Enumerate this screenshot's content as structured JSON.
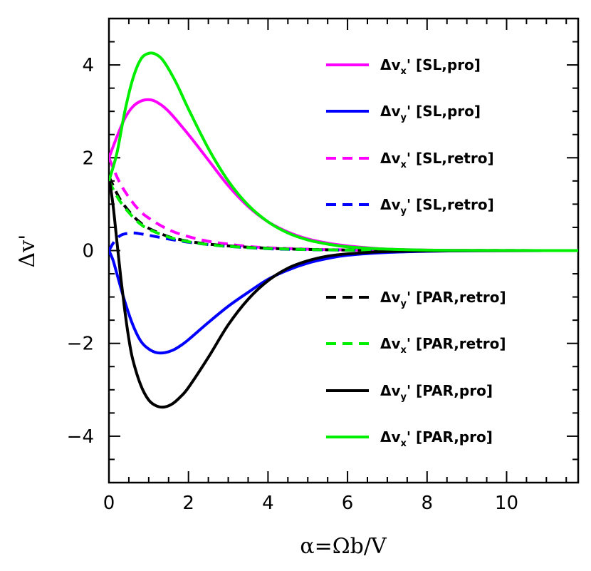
{
  "chart_data": {
    "type": "line",
    "xlabel": "α=Ωb/V",
    "ylabel": "Δv'",
    "xlim": [
      0,
      11.8
    ],
    "ylim": [
      -5,
      5
    ],
    "x_ticks": [
      0,
      2,
      4,
      6,
      8,
      10
    ],
    "x_tick_labels": [
      "0",
      "2",
      "4",
      "6",
      "8",
      "10"
    ],
    "y_ticks": [
      -4,
      -2,
      0,
      2,
      4
    ],
    "y_tick_labels": [
      "−4",
      "−2",
      "0",
      "2",
      "4"
    ],
    "legend_placement": "inside-right",
    "series": [
      {
        "name": "Δv_x' [SL,pro]",
        "label": {
          "main": "Δv",
          "sub": "x",
          "rest": "' [SL,pro]"
        },
        "color": "#ff00ff",
        "dash": "solid",
        "x": [
          0,
          0.2,
          0.4,
          0.6,
          0.8,
          1.0,
          1.2,
          1.5,
          2.0,
          2.5,
          3.0,
          3.5,
          4.0,
          4.5,
          5.0,
          5.5,
          6.0,
          6.5,
          7.0,
          8.0,
          9.0,
          10.0,
          11.8
        ],
        "y": [
          2.0,
          2.45,
          2.85,
          3.1,
          3.22,
          3.25,
          3.2,
          3.0,
          2.5,
          1.95,
          1.4,
          0.95,
          0.62,
          0.4,
          0.25,
          0.16,
          0.1,
          0.06,
          0.03,
          0.01,
          0.004,
          0.001,
          0.0
        ]
      },
      {
        "name": "Δv_y' [SL,pro]",
        "label": {
          "main": "Δv",
          "sub": "y",
          "rest": "' [SL,pro]"
        },
        "color": "#0000ff",
        "dash": "solid",
        "x": [
          0,
          0.1,
          0.2,
          0.4,
          0.6,
          0.8,
          1.0,
          1.2,
          1.4,
          1.6,
          1.8,
          2.0,
          2.5,
          3.0,
          3.5,
          4.0,
          4.5,
          5.0,
          5.5,
          6.0,
          7.0,
          8.0,
          9.0,
          10.0,
          11.8
        ],
        "y": [
          0.0,
          -0.2,
          -0.5,
          -1.1,
          -1.6,
          -1.95,
          -2.12,
          -2.2,
          -2.2,
          -2.15,
          -2.05,
          -1.92,
          -1.55,
          -1.2,
          -0.9,
          -0.62,
          -0.42,
          -0.27,
          -0.17,
          -0.1,
          -0.04,
          -0.015,
          -0.005,
          -0.002,
          0.0
        ]
      },
      {
        "name": "Δv_x' [SL,retro]",
        "label": {
          "main": "Δv",
          "sub": "x",
          "rest": "' [SL,retro]"
        },
        "color": "#ff00ff",
        "dash": "dashed",
        "x": [
          0,
          0.25,
          0.5,
          0.75,
          1.0,
          1.5,
          2.0,
          2.5,
          3.0,
          3.5,
          4.0,
          5.0,
          6.0,
          7.0,
          8.0,
          9.0,
          11.8
        ],
        "y": [
          2.0,
          1.5,
          1.15,
          0.88,
          0.7,
          0.45,
          0.3,
          0.2,
          0.14,
          0.09,
          0.06,
          0.03,
          0.015,
          0.007,
          0.003,
          0.001,
          0.0
        ]
      },
      {
        "name": "Δv_y' [SL,retro]",
        "label": {
          "main": "Δv",
          "sub": "y",
          "rest": "' [SL,retro]"
        },
        "color": "#0000ff",
        "dash": "dashed",
        "x": [
          0,
          0.1,
          0.2,
          0.3,
          0.4,
          0.6,
          0.8,
          1.0,
          1.5,
          2.0,
          2.5,
          3.0,
          4.0,
          5.0,
          6.0,
          7.0,
          8.0,
          11.8
        ],
        "y": [
          0.0,
          0.15,
          0.26,
          0.33,
          0.36,
          0.38,
          0.36,
          0.33,
          0.25,
          0.18,
          0.13,
          0.09,
          0.04,
          0.02,
          0.01,
          0.005,
          0.002,
          0.0
        ]
      },
      {
        "name": "Δv_y' [PAR,retro]",
        "label": {
          "main": "Δv",
          "sub": "y",
          "rest": "' [PAR,retro]"
        },
        "color": "#000000",
        "dash": "dashed",
        "x": [
          0,
          0.25,
          0.5,
          0.75,
          1.0,
          1.5,
          2.0,
          2.5,
          3.0,
          4.0,
          5.0,
          6.0,
          7.0,
          8.0,
          11.8
        ],
        "y": [
          1.6,
          1.15,
          0.85,
          0.63,
          0.48,
          0.3,
          0.2,
          0.14,
          0.1,
          0.05,
          0.025,
          0.012,
          0.006,
          0.003,
          0.0
        ]
      },
      {
        "name": "Δv_x' [PAR,retro]",
        "label": {
          "main": "Δv",
          "sub": "x",
          "rest": "' [PAR,retro]"
        },
        "color": "#00ee00",
        "dash": "dashed",
        "x": [
          0,
          0.25,
          0.5,
          0.75,
          1.0,
          1.5,
          2.0,
          2.5,
          3.0,
          4.0,
          5.0,
          6.0,
          7.0,
          8.0,
          11.8
        ],
        "y": [
          1.5,
          1.1,
          0.82,
          0.6,
          0.46,
          0.29,
          0.19,
          0.13,
          0.09,
          0.045,
          0.022,
          0.011,
          0.005,
          0.002,
          0.0
        ]
      },
      {
        "name": "Δv_y' [PAR,pro]",
        "label": {
          "main": "Δv",
          "sub": "y",
          "rest": "' [PAR,pro]"
        },
        "color": "#000000",
        "dash": "solid",
        "x": [
          0,
          0.1,
          0.2,
          0.3,
          0.4,
          0.5,
          0.6,
          0.8,
          1.0,
          1.2,
          1.4,
          1.6,
          1.8,
          2.0,
          2.5,
          3.0,
          3.5,
          4.0,
          4.5,
          5.0,
          5.5,
          6.0,
          7.0,
          8.0,
          9.0,
          10.0,
          11.8
        ],
        "y": [
          1.6,
          1.0,
          0.2,
          -0.6,
          -1.3,
          -1.9,
          -2.35,
          -2.9,
          -3.22,
          -3.35,
          -3.37,
          -3.3,
          -3.15,
          -2.95,
          -2.3,
          -1.6,
          -1.05,
          -0.65,
          -0.38,
          -0.22,
          -0.12,
          -0.07,
          -0.02,
          -0.007,
          -0.002,
          -0.001,
          0.0
        ]
      },
      {
        "name": "Δv_x' [PAR,pro]",
        "label": {
          "main": "Δv",
          "sub": "x",
          "rest": "' [PAR,pro]"
        },
        "color": "#00ee00",
        "dash": "solid",
        "x": [
          0,
          0.2,
          0.4,
          0.6,
          0.8,
          1.0,
          1.2,
          1.4,
          1.7,
          2.0,
          2.5,
          3.0,
          3.5,
          4.0,
          4.5,
          5.0,
          5.5,
          6.0,
          7.0,
          8.0,
          9.0,
          11.8
        ],
        "y": [
          1.5,
          2.1,
          3.0,
          3.7,
          4.12,
          4.25,
          4.22,
          4.05,
          3.6,
          3.05,
          2.2,
          1.5,
          0.98,
          0.62,
          0.38,
          0.23,
          0.14,
          0.08,
          0.03,
          0.01,
          0.003,
          0.0
        ]
      }
    ]
  }
}
